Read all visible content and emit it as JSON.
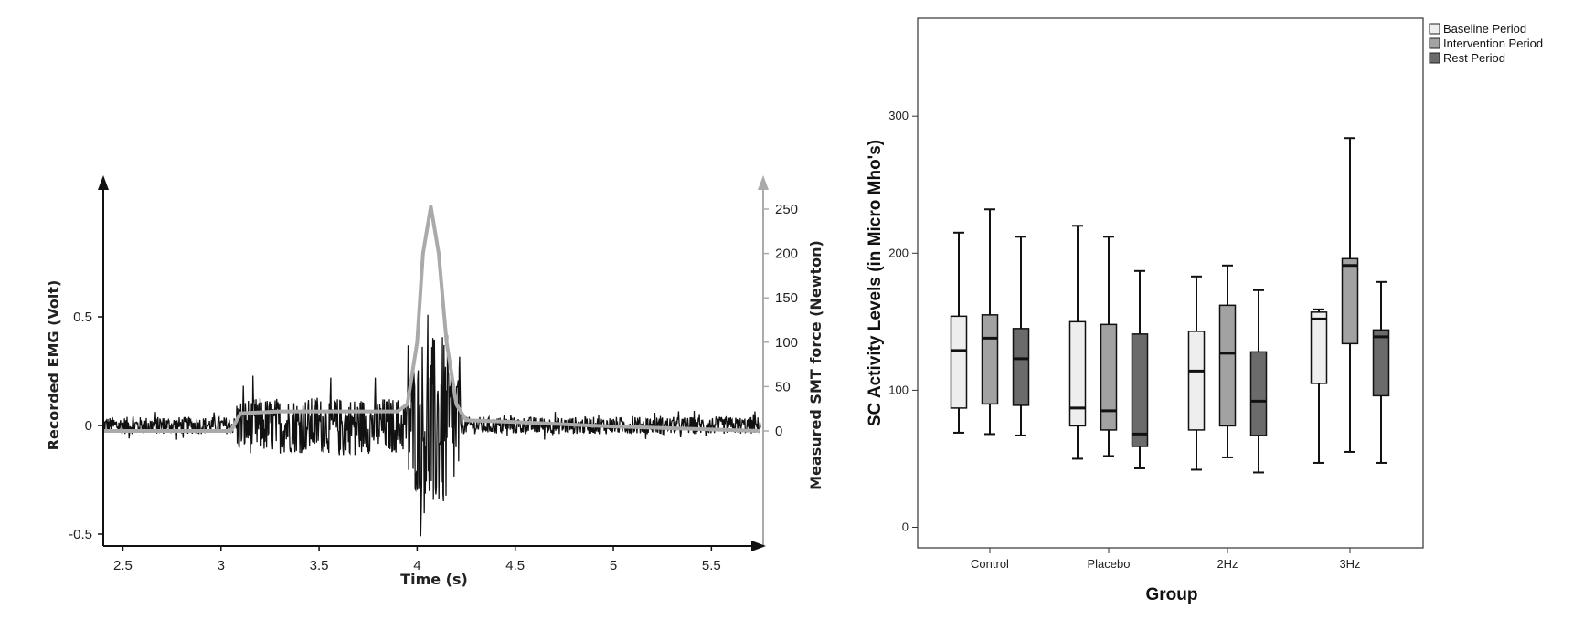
{
  "chart_data": [
    {
      "type": "line",
      "xlabel": "Time (s)",
      "ylabel": "Recorded EMG (Volt)",
      "y2label": "Measured SMT force  (Newton)",
      "xlim": [
        2.4,
        5.75
      ],
      "ylim": [
        -0.5,
        1.0
      ],
      "y2lim": [
        0,
        250
      ],
      "x_ticks": [
        "2.5",
        "3",
        "3.5",
        "4",
        "4.5",
        "5",
        "5.5"
      ],
      "x_tick_values": [
        2.5,
        3,
        3.5,
        4,
        4.5,
        5,
        5.5
      ],
      "y_ticks": [
        "-0.5",
        "0",
        "0.5"
      ],
      "y_tick_values": [
        -0.5,
        0,
        0.5
      ],
      "y2_ticks": [
        "0",
        "50",
        "100",
        "150",
        "200",
        "250"
      ],
      "y2_tick_values": [
        0,
        50,
        100,
        150,
        200,
        250
      ],
      "series": [
        {
          "axis": "left",
          "color": "#111111",
          "noise_segments": [
            {
              "x0": 2.4,
              "x1": 3.08,
              "amplitude": 0.04
            },
            {
              "x0": 3.08,
              "x1": 3.95,
              "amplitude": 0.13
            },
            {
              "x0": 3.95,
              "x1": 4.22,
              "amplitude": 0.32
            },
            {
              "x0": 4.22,
              "x1": 5.75,
              "amplitude": 0.04
            }
          ]
        },
        {
          "axis": "right",
          "color": "#aaaaaa",
          "x": [
            2.4,
            3.05,
            3.1,
            3.3,
            3.6,
            3.9,
            3.95,
            4.0,
            4.03,
            4.07,
            4.11,
            4.15,
            4.2,
            4.25,
            4.5,
            5.0,
            5.75
          ],
          "y": [
            0,
            0,
            20,
            22,
            22,
            22,
            30,
            100,
            200,
            253,
            200,
            100,
            30,
            12,
            10,
            5,
            0
          ]
        }
      ]
    },
    {
      "type": "box",
      "xlabel": "Group",
      "ylabel": "SC Activity Levels (in Micro Mho's)",
      "categories": [
        "Control",
        "Placebo",
        "2Hz",
        "3Hz"
      ],
      "ylim": [
        -18,
        370
      ],
      "y_ticks": [
        0,
        100,
        200,
        300
      ],
      "legend": [
        "Baseline Period",
        "Intervention Period",
        "Rest Period"
      ],
      "legend_position": "top-right",
      "colors": [
        "#eeeeee",
        "#a2a2a2",
        "#6b6b6b"
      ],
      "boxes": [
        [
          {
            "min": 69,
            "q1": 87,
            "median": 129,
            "q3": 154,
            "max": 215
          },
          {
            "min": 68,
            "q1": 90,
            "median": 138,
            "q3": 155,
            "max": 232
          },
          {
            "min": 67,
            "q1": 89,
            "median": 123,
            "q3": 145,
            "max": 212
          }
        ],
        [
          {
            "min": 50,
            "q1": 74,
            "median": 87,
            "q3": 150,
            "max": 220
          },
          {
            "min": 52,
            "q1": 71,
            "median": 85,
            "q3": 148,
            "max": 212
          },
          {
            "min": 43,
            "q1": 59,
            "median": 68,
            "q3": 141,
            "max": 187
          }
        ],
        [
          {
            "min": 42,
            "q1": 71,
            "median": 114,
            "q3": 143,
            "max": 183
          },
          {
            "min": 51,
            "q1": 74,
            "median": 127,
            "q3": 162,
            "max": 191
          },
          {
            "min": 40,
            "q1": 67,
            "median": 92,
            "q3": 128,
            "max": 173
          }
        ],
        [
          {
            "min": 47,
            "q1": 105,
            "median": 152,
            "q3": 157,
            "max": 159
          },
          {
            "min": 55,
            "q1": 134,
            "median": 191,
            "q3": 196,
            "max": 284
          },
          {
            "min": 47,
            "q1": 96,
            "median": 139,
            "q3": 144,
            "max": 179
          }
        ]
      ]
    }
  ]
}
